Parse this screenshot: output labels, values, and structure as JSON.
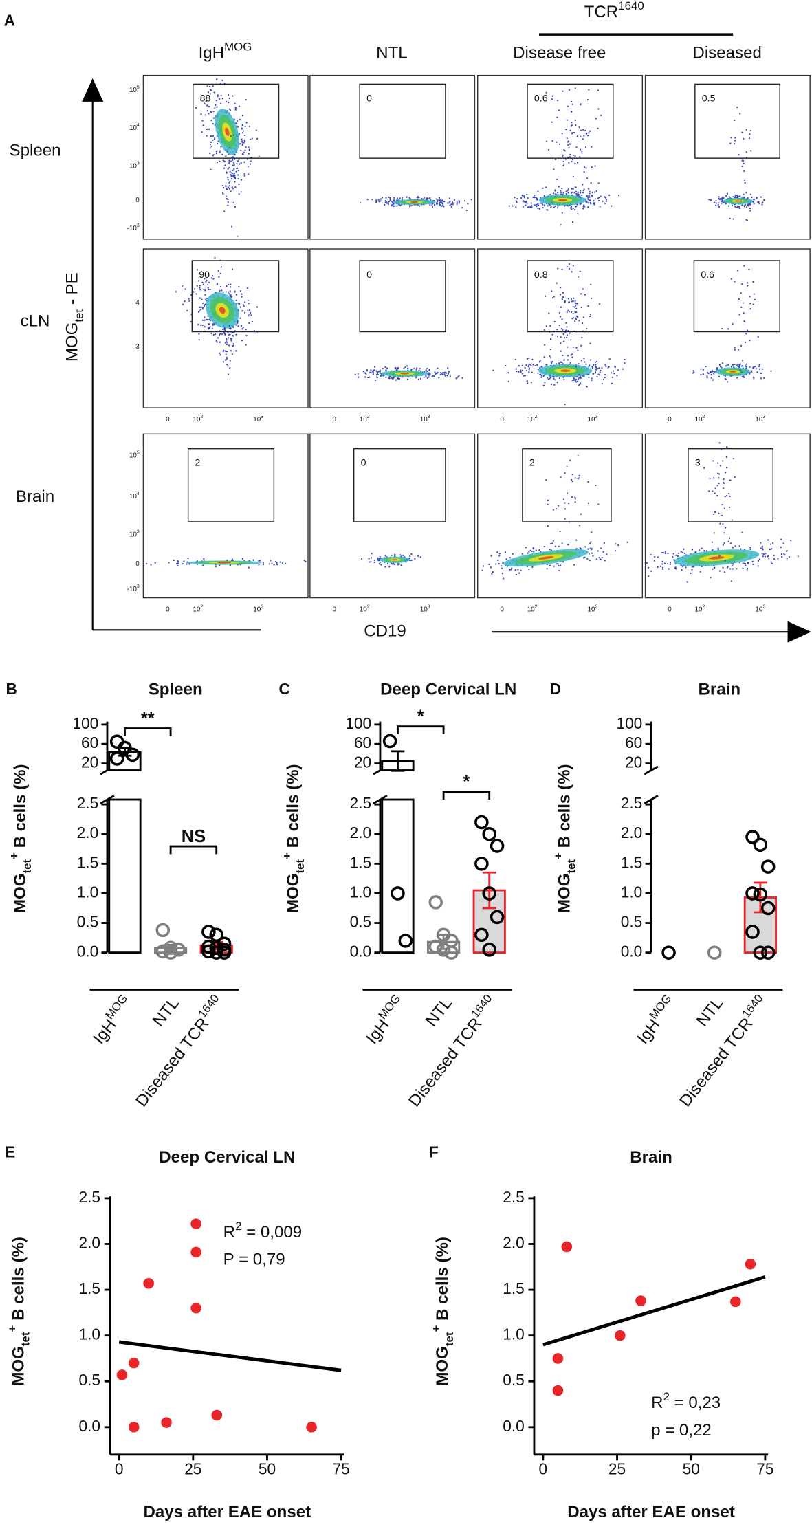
{
  "chart_data": [
    {
      "type": "flow",
      "panel": "A",
      "group_label": {
        "text": "TCR",
        "sup": "1640"
      },
      "columns": [
        {
          "text": "IgH",
          "sup": "MOG"
        },
        {
          "text": "NTL"
        },
        {
          "text": "Disease free"
        },
        {
          "text": "Diseased"
        }
      ],
      "rows": [
        "Spleen",
        "cLN",
        "Brain"
      ],
      "gates": [
        [
          88,
          0,
          0.6,
          0.5
        ],
        [
          90,
          0,
          0.8,
          0.6
        ],
        [
          2,
          0,
          2,
          3
        ]
      ],
      "ylabel": {
        "text": "MOG",
        "sub": "tet",
        "after": " - PE"
      },
      "xlabel": "CD19",
      "row_yticks": [
        [
          {
            "text": "10",
            "sup": "5"
          },
          {
            "text": "10",
            "sup": "4"
          },
          {
            "text": "10",
            "sup": "3"
          },
          {
            "text": "0"
          },
          {
            "text": "-10",
            "sup": "3"
          }
        ],
        [
          {
            "text": "4"
          },
          {
            "text": "3"
          }
        ],
        [
          {
            "text": "10",
            "sup": "5"
          },
          {
            "text": "10",
            "sup": "4"
          },
          {
            "text": "10",
            "sup": "3"
          },
          {
            "text": "0"
          },
          {
            "text": "-10",
            "sup": "3"
          }
        ]
      ],
      "xticks": [
        {
          "text": "0"
        },
        {
          "text": "10",
          "sup": "2"
        },
        {
          "text": "10",
          "sup": "3"
        }
      ]
    },
    {
      "type": "dotbar",
      "panel": "B",
      "title": "Spleen",
      "ylabel": {
        "text": "MOG",
        "sub": "tet",
        "sup": "+",
        "after": " B cells (%)"
      },
      "categories": [
        {
          "text": "IgH",
          "sup": "MOG"
        },
        {
          "text": "NTL"
        },
        {
          "text": "Diseased TCR",
          "sup": "1640"
        }
      ],
      "colors": [
        "#000000",
        "#7f7f7f",
        "#e8262a"
      ],
      "fills": [
        "#ffffff",
        "#ffffff",
        "#d9d9d9"
      ],
      "means": [
        44,
        0.08,
        0.12
      ],
      "sems": [
        8,
        0.05,
        0.06
      ],
      "points": [
        [
          65,
          52,
          38,
          30
        ],
        [
          0.38,
          0.08,
          0.05,
          0.02,
          0
        ],
        [
          0.35,
          0.3,
          0.15,
          0.1,
          0.08,
          0.05,
          0.02,
          0,
          0
        ]
      ],
      "ylim": [
        0,
        2.5
      ],
      "yticks": [
        {
          "value": 0,
          "label": "0.0"
        },
        0.5,
        {
          "value": 1,
          "label": "1.0"
        },
        1.5,
        {
          "value": 2,
          "label": "2.0"
        },
        2.5
      ],
      "ylim_upper": [
        20,
        100
      ],
      "yticks_upper": [
        20,
        60,
        100
      ],
      "annotations": [
        "**",
        "NS"
      ]
    },
    {
      "type": "dotbar",
      "panel": "C",
      "title": "Deep Cervical LN",
      "ylabel": {
        "text": "MOG",
        "sub": "tet",
        "sup": "+",
        "after": " B cells (%)"
      },
      "categories": [
        {
          "text": "IgH",
          "sup": "MOG"
        },
        {
          "text": "NTL"
        },
        {
          "text": "Diseased TCR",
          "sup": "1640"
        }
      ],
      "colors": [
        "#000000",
        "#7f7f7f",
        "#e8262a"
      ],
      "fills": [
        "#ffffff",
        "#ffffff",
        "#d9d9d9"
      ],
      "means": [
        25,
        0.18,
        1.05
      ],
      "sems": [
        20,
        0.12,
        0.3
      ],
      "points": [
        [
          66,
          1.0,
          0.2
        ],
        [
          0.85,
          0.3,
          0.2,
          0.1,
          0.05,
          0
        ],
        [
          2.2,
          2.0,
          1.8,
          1.5,
          1.0,
          0.6,
          0.3,
          0.05
        ]
      ],
      "ylim": [
        0,
        2.5
      ],
      "yticks": [
        {
          "value": 0,
          "label": "0.0"
        },
        0.5,
        {
          "value": 1,
          "label": "1.0"
        },
        1.5,
        {
          "value": 2,
          "label": "2.0"
        },
        2.5
      ],
      "ylim_upper": [
        20,
        100
      ],
      "yticks_upper": [
        20,
        60,
        100
      ],
      "annotations": [
        "*",
        "*"
      ]
    },
    {
      "type": "dotbar",
      "panel": "D",
      "title": "Brain",
      "ylabel": {
        "text": "MOG",
        "sub": "tet",
        "sup": "+",
        "after": " B cells (%)"
      },
      "categories": [
        {
          "text": "IgH",
          "sup": "MOG"
        },
        {
          "text": "NTL"
        },
        {
          "text": "Diseased TCR",
          "sup": "1640"
        }
      ],
      "colors": [
        "#000000",
        "#7f7f7f",
        "#e8262a"
      ],
      "fills": [
        "#ffffff",
        "#ffffff",
        "#d9d9d9"
      ],
      "means": [
        0,
        0,
        0.93
      ],
      "sems": [
        0,
        0,
        0.25
      ],
      "points": [
        [
          0
        ],
        [
          0
        ],
        [
          1.95,
          1.82,
          1.45,
          1.0,
          0.98,
          0.75,
          0.35,
          0,
          0
        ]
      ],
      "ylim": [
        0,
        2.5
      ],
      "yticks": [
        {
          "value": 0,
          "label": "0.0"
        },
        0.5,
        {
          "value": 1,
          "label": "1.0"
        },
        1.5,
        {
          "value": 2,
          "label": "2.0"
        },
        2.5
      ],
      "ylim_upper": [
        20,
        100
      ],
      "yticks_upper": [
        20,
        60,
        100
      ],
      "annotations": []
    },
    {
      "type": "scatter",
      "panel": "E",
      "title": "Deep Cervical LN",
      "xlabel": "Days after EAE onset",
      "ylabel": {
        "text": "MOG",
        "sub": "tet",
        "sup": "+",
        "after": " B cells (%)"
      },
      "x": [
        1,
        5,
        5,
        10,
        16,
        26,
        26,
        26,
        33,
        65
      ],
      "values": [
        0.57,
        0.7,
        0,
        1.57,
        0.05,
        2.22,
        1.91,
        1.3,
        0.13,
        0
      ],
      "color": "#e8262a",
      "fit": {
        "x": [
          0,
          75
        ],
        "y": [
          0.93,
          0.62
        ],
        "color": "#000000"
      },
      "xlim": [
        -3,
        76
      ],
      "xticks": [
        0,
        25,
        50,
        75
      ],
      "ylim": [
        -0.3,
        2.5
      ],
      "yticks": [
        {
          "value": 0,
          "label": "0.0"
        },
        0.5,
        {
          "value": 1,
          "label": "1.0"
        },
        1.5,
        {
          "value": 2,
          "label": "2.0"
        },
        2.5
      ],
      "annotations": [
        {
          "text": "R",
          "sup": "2",
          "after": " = 0,009"
        },
        {
          "text": "P = 0,79"
        }
      ]
    },
    {
      "type": "scatter",
      "panel": "F",
      "title": "Brain",
      "xlabel": "Days after EAE onset",
      "ylabel": {
        "text": "MOG",
        "sub": "tet",
        "sup": "+",
        "after": " B cells (%)"
      },
      "x": [
        5,
        5,
        8,
        26,
        33,
        65,
        70
      ],
      "values": [
        0.75,
        0.4,
        1.97,
        1.0,
        1.38,
        1.37,
        1.78
      ],
      "color": "#e8262a",
      "fit": {
        "x": [
          0,
          75
        ],
        "y": [
          0.9,
          1.64
        ],
        "color": "#000000"
      },
      "xlim": [
        -3,
        76
      ],
      "xticks": [
        0,
        25,
        50,
        75
      ],
      "ylim": [
        -0.3,
        2.5
      ],
      "yticks": [
        {
          "value": 0,
          "label": "0.0"
        },
        0.5,
        {
          "value": 1,
          "label": "1.0"
        },
        1.5,
        {
          "value": 2,
          "label": "2.0"
        },
        2.5
      ],
      "annotations": [
        {
          "text": "R",
          "sup": "2",
          "after": " = 0,23"
        },
        {
          "text": "p = 0,22"
        }
      ]
    }
  ]
}
